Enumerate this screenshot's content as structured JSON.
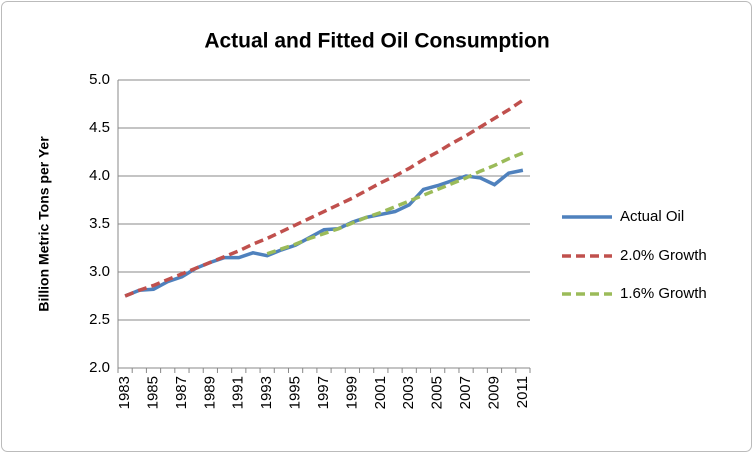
{
  "chart_data": {
    "type": "line",
    "title": "Actual and Fitted Oil Consumption",
    "y_label": "Billion Metric Tons per Yer",
    "categories": [
      "1983",
      null,
      "1985",
      null,
      "1987",
      null,
      "1989",
      null,
      "1991",
      null,
      "1993",
      null,
      "1995",
      null,
      "1997",
      null,
      "1999",
      null,
      "2001",
      null,
      "2003",
      null,
      "2005",
      null,
      "2007",
      null,
      "2009",
      null,
      "2011"
    ],
    "series": [
      {
        "name": "Actual Oil",
        "color": "#4f81bd",
        "dash": false,
        "values": [
          2.75,
          2.81,
          2.82,
          2.9,
          2.95,
          3.04,
          3.1,
          3.15,
          3.15,
          3.2,
          3.17,
          3.23,
          3.28,
          3.36,
          3.44,
          3.45,
          3.52,
          3.57,
          3.6,
          3.63,
          3.7,
          3.86,
          3.9,
          3.95,
          4.0,
          3.98,
          3.91,
          4.03,
          4.06
        ]
      },
      {
        "name": "2.0% Growth",
        "color": "#c0504d",
        "dash": true,
        "values": [
          2.75,
          2.81,
          2.86,
          2.92,
          2.98,
          3.04,
          3.1,
          3.16,
          3.22,
          3.29,
          3.35,
          3.42,
          3.49,
          3.56,
          3.63,
          3.7,
          3.77,
          3.85,
          3.93,
          4.0,
          4.08,
          4.17,
          4.25,
          4.34,
          4.42,
          4.51,
          4.6,
          4.69,
          4.79
        ]
      },
      {
        "name": "1.6% Growth",
        "color": "#9bbb59",
        "dash": true,
        "values": [
          null,
          null,
          null,
          null,
          null,
          null,
          null,
          null,
          null,
          null,
          3.19,
          3.24,
          3.29,
          3.35,
          3.4,
          3.45,
          3.51,
          3.57,
          3.62,
          3.68,
          3.74,
          3.8,
          3.86,
          3.92,
          3.98,
          4.05,
          4.11,
          4.18,
          4.24
        ]
      }
    ],
    "ylim": [
      2,
      5
    ],
    "yticks": [
      {
        "value": 2,
        "label": "2.0"
      },
      2.5,
      {
        "value": 3,
        "label": "3.0"
      },
      3.5,
      {
        "value": 4,
        "label": "4.0"
      },
      4.5,
      {
        "value": 5,
        "label": "5.0"
      }
    ],
    "grid": true,
    "legend": "right"
  }
}
